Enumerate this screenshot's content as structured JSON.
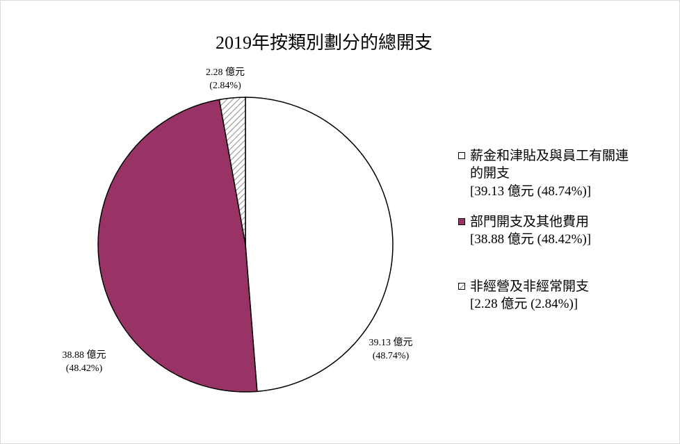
{
  "chart_data": {
    "type": "pie",
    "title": "2019年按類別劃分的總開支",
    "slices": [
      {
        "legend_line1": "薪金和津貼及與員工有關連",
        "legend_line2": "的開支",
        "legend_value": "[39.13 億元 (48.74%)]",
        "value": 39.13,
        "percent": 48.74,
        "label_amount": "39.13 億元",
        "label_percent": "(48.74%)",
        "color": "#ffffff",
        "pattern": "solid"
      },
      {
        "legend_line1": "部門開支及其他費用",
        "legend_value": "[38.88  億元 (48.42%)]",
        "value": 38.88,
        "percent": 48.42,
        "label_amount": "38.88 億元",
        "label_percent": "(48.42%)",
        "color": "#993366",
        "pattern": "solid"
      },
      {
        "legend_line1": "非經營及非經常開支",
        "legend_value": "[2.28  億元 (2.84%)]",
        "value": 2.28,
        "percent": 2.84,
        "label_amount": "2.28 億元",
        "label_percent": "(2.84%)",
        "color": "#ffffff",
        "pattern": "diagonal-hatch"
      }
    ],
    "legend_position": "right"
  }
}
